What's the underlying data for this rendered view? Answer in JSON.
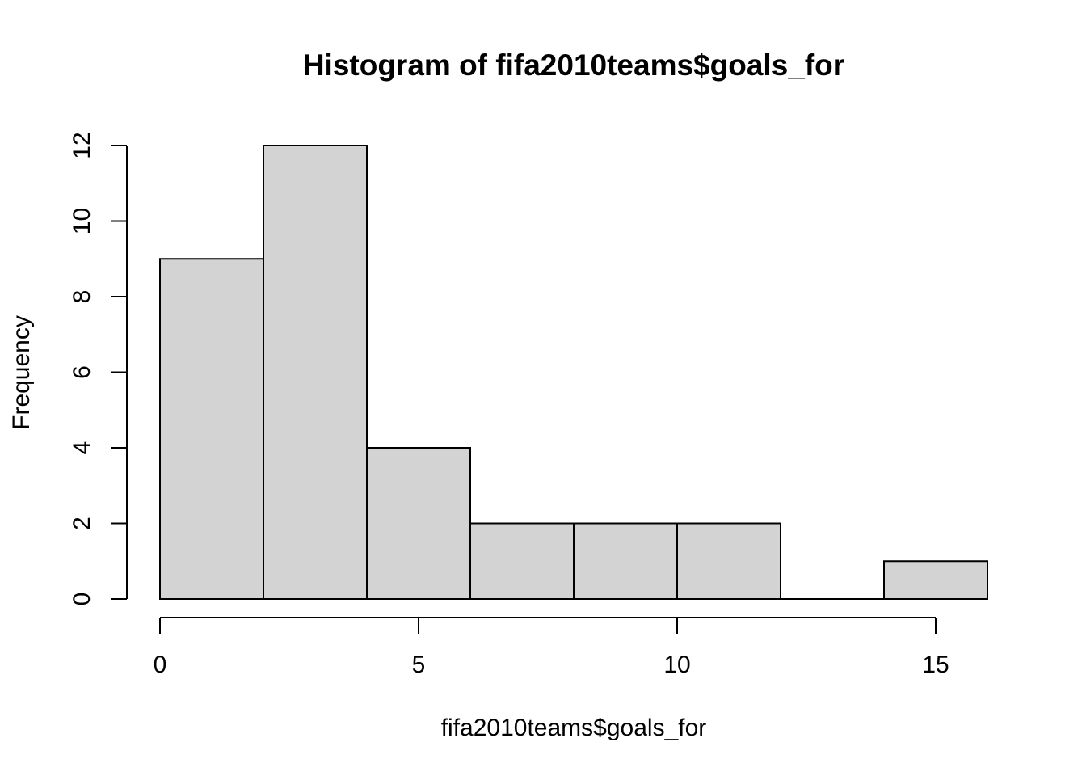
{
  "chart_data": {
    "type": "bar",
    "title": "Histogram of fifa2010teams$goals_for",
    "xlabel": "fifa2010teams$goals_for",
    "ylabel": "Frequency",
    "bins": [
      [
        0,
        2
      ],
      [
        2,
        4
      ],
      [
        4,
        6
      ],
      [
        6,
        8
      ],
      [
        8,
        10
      ],
      [
        10,
        12
      ],
      [
        12,
        14
      ],
      [
        14,
        16
      ]
    ],
    "values": [
      9,
      12,
      4,
      2,
      2,
      2,
      0,
      1
    ],
    "xlim": [
      0,
      16
    ],
    "ylim": [
      0,
      12
    ],
    "x_ticks": [
      0,
      5,
      10,
      15
    ],
    "y_ticks": [
      0,
      2,
      4,
      6,
      8,
      10,
      12
    ],
    "bar_color": "#d3d3d3",
    "border_color": "#000000",
    "grid": false
  }
}
